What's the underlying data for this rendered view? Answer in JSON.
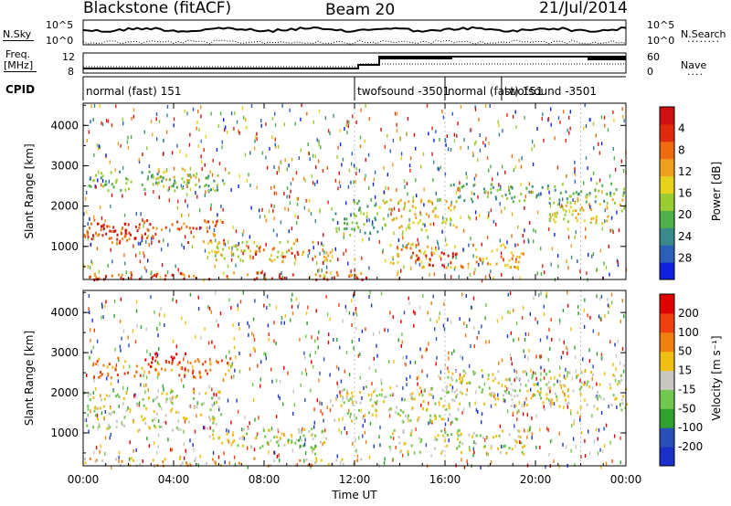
{
  "header": {
    "station": "Blackstone (fitACF)",
    "beam": "Beam 20",
    "date": "21/Jul/2014"
  },
  "side_labels": {
    "nsky": "N.Sky",
    "nsearch": "N.Search",
    "freq_line1": "Freq.",
    "freq_line2": "[MHz]",
    "nave": "Nave",
    "cpid": "CPID",
    "dots_short": "....",
    "dots_long": "........"
  },
  "noise_axis": {
    "left_top": "10^5",
    "left_bottom": "10^0",
    "right_top": "10^5",
    "right_bottom": "10^0"
  },
  "freq_axis": {
    "left_top": "12",
    "left_bottom": "8",
    "right_top": "60",
    "right_bottom": "0"
  },
  "cpid_segments": [
    {
      "label": "normal (fast) 151",
      "start_h": 0.0,
      "end_h": 12.0
    },
    {
      "label": "twofsound -3501",
      "start_h": 12.0,
      "end_h": 16.0
    },
    {
      "label": "normal (fast) 151",
      "start_h": 16.0,
      "end_h": 18.5
    },
    {
      "label": "twofsound -3501",
      "start_h": 18.5,
      "end_h": 24.0
    }
  ],
  "chart_data": [
    {
      "type": "heatmap",
      "title": "",
      "xlabel": "Time UT",
      "ylabel": "Slant Range [km]",
      "x_ticks": [
        "00:00",
        "04:00",
        "08:00",
        "12:00",
        "16:00",
        "20:00",
        "00:00"
      ],
      "x_tick_hours": [
        0,
        4,
        8,
        12,
        16,
        20,
        24
      ],
      "y_ticks": [
        "1000",
        "2000",
        "3000",
        "4000"
      ],
      "y_tick_values": [
        1000,
        2000,
        3000,
        4000
      ],
      "xlim": [
        0,
        24
      ],
      "ylim": [
        180,
        4550
      ],
      "colorbar": {
        "label": "Power [dB]",
        "ticks": [
          "4",
          "8",
          "12",
          "16",
          "20",
          "24",
          "28"
        ],
        "colors": [
          "#1020e0",
          "#2c5fb8",
          "#3b8a8a",
          "#4fb04a",
          "#9acd32",
          "#e6d21a",
          "#f0a020",
          "#f06a10",
          "#e02a10",
          "#d01010"
        ]
      },
      "regions": [
        {
          "t0": 0.0,
          "t1": 6.2,
          "r0": 1100,
          "r1": 1700,
          "level": 7
        },
        {
          "t0": 0.3,
          "t1": 3.0,
          "r0": 1200,
          "r1": 1600,
          "level": 9
        },
        {
          "t0": 0.2,
          "t1": 6.5,
          "r0": 2400,
          "r1": 2900,
          "level": 3
        },
        {
          "t0": 3.0,
          "t1": 5.0,
          "r0": 2500,
          "r1": 3000,
          "level": 5
        },
        {
          "t0": 0.0,
          "t1": 12.5,
          "r0": 200,
          "r1": 400,
          "level": 7
        },
        {
          "t0": 0.0,
          "t1": 12.5,
          "r0": 200,
          "r1": 270,
          "level": 9
        },
        {
          "t0": 5.5,
          "t1": 11.0,
          "r0": 650,
          "r1": 1150,
          "level": 5
        },
        {
          "t0": 7.5,
          "t1": 10.0,
          "r0": 750,
          "r1": 1000,
          "level": 8
        },
        {
          "t0": 11.0,
          "t1": 13.0,
          "r0": 1300,
          "r1": 2200,
          "level": 3
        },
        {
          "t0": 13.0,
          "t1": 16.5,
          "r0": 1400,
          "r1": 2200,
          "level": 5
        },
        {
          "t0": 13.5,
          "t1": 19.5,
          "r0": 500,
          "r1": 1100,
          "level": 6
        },
        {
          "t0": 14.5,
          "t1": 16.5,
          "r0": 550,
          "r1": 900,
          "level": 9
        },
        {
          "t0": 16.0,
          "t1": 24.0,
          "r0": 2100,
          "r1": 2600,
          "level": 3
        },
        {
          "t0": 20.5,
          "t1": 24.0,
          "r0": 1600,
          "r1": 2300,
          "level": 5
        }
      ]
    },
    {
      "type": "heatmap",
      "title": "",
      "xlabel": "Time UT",
      "ylabel": "Slant Range [km]",
      "x_ticks": [
        "00:00",
        "04:00",
        "08:00",
        "12:00",
        "16:00",
        "20:00",
        "00:00"
      ],
      "x_tick_hours": [
        0,
        4,
        8,
        12,
        16,
        20,
        24
      ],
      "y_ticks": [
        "1000",
        "2000",
        "3000",
        "4000"
      ],
      "y_tick_values": [
        1000,
        2000,
        3000,
        4000
      ],
      "xlim": [
        0,
        24
      ],
      "ylim": [
        180,
        4550
      ],
      "colorbar": {
        "label": "Velocity [m s⁻¹]",
        "ticks": [
          "200",
          "100",
          "50",
          "15",
          "-15",
          "-50",
          "-100",
          "-200"
        ],
        "colors": [
          "#1a30c8",
          "#2a4fb8",
          "#30a030",
          "#70c850",
          "#c8c8c0",
          "#f0c010",
          "#f08010",
          "#f04010",
          "#e00000"
        ]
      },
      "regions": [
        {
          "t0": 0.0,
          "t1": 6.2,
          "r0": 1100,
          "r1": 2100,
          "level": 4
        },
        {
          "t0": 0.3,
          "t1": 6.5,
          "r0": 2400,
          "r1": 2900,
          "level": 6
        },
        {
          "t0": 2.5,
          "t1": 4.5,
          "r0": 2600,
          "r1": 3100,
          "level": 8
        },
        {
          "t0": 0.0,
          "t1": 12.5,
          "r0": 200,
          "r1": 400,
          "level": 5
        },
        {
          "t0": 5.5,
          "t1": 11.0,
          "r0": 650,
          "r1": 1150,
          "level": 4
        },
        {
          "t0": 9.0,
          "t1": 10.5,
          "r0": 500,
          "r1": 900,
          "level": 3
        },
        {
          "t0": 11.0,
          "t1": 16.5,
          "r0": 1300,
          "r1": 2200,
          "level": 4
        },
        {
          "t0": 13.5,
          "t1": 19.5,
          "r0": 500,
          "r1": 1100,
          "level": 4
        },
        {
          "t0": 16.0,
          "t1": 24.0,
          "r0": 1600,
          "r1": 2600,
          "level": 4
        }
      ]
    }
  ]
}
